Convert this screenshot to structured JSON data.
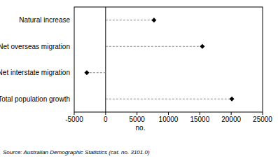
{
  "chart_data": {
    "type": "dot",
    "orientation": "horizontal",
    "categories": [
      "Natural increase",
      "Net overseas migration",
      "Net interstate migration",
      "Total population growth"
    ],
    "values": [
      7700,
      15400,
      -3000,
      20100
    ],
    "color": "#000000",
    "marker": "diamond",
    "line_style": "dashed",
    "xlim": [
      -5000,
      25000
    ],
    "xticks": [
      -5000,
      0,
      5000,
      10000,
      15000,
      20000,
      25000
    ],
    "x_label": "no.",
    "grid": false,
    "source": "Source: Australian Demographic Statistics (cat. no. 3101.0)"
  }
}
